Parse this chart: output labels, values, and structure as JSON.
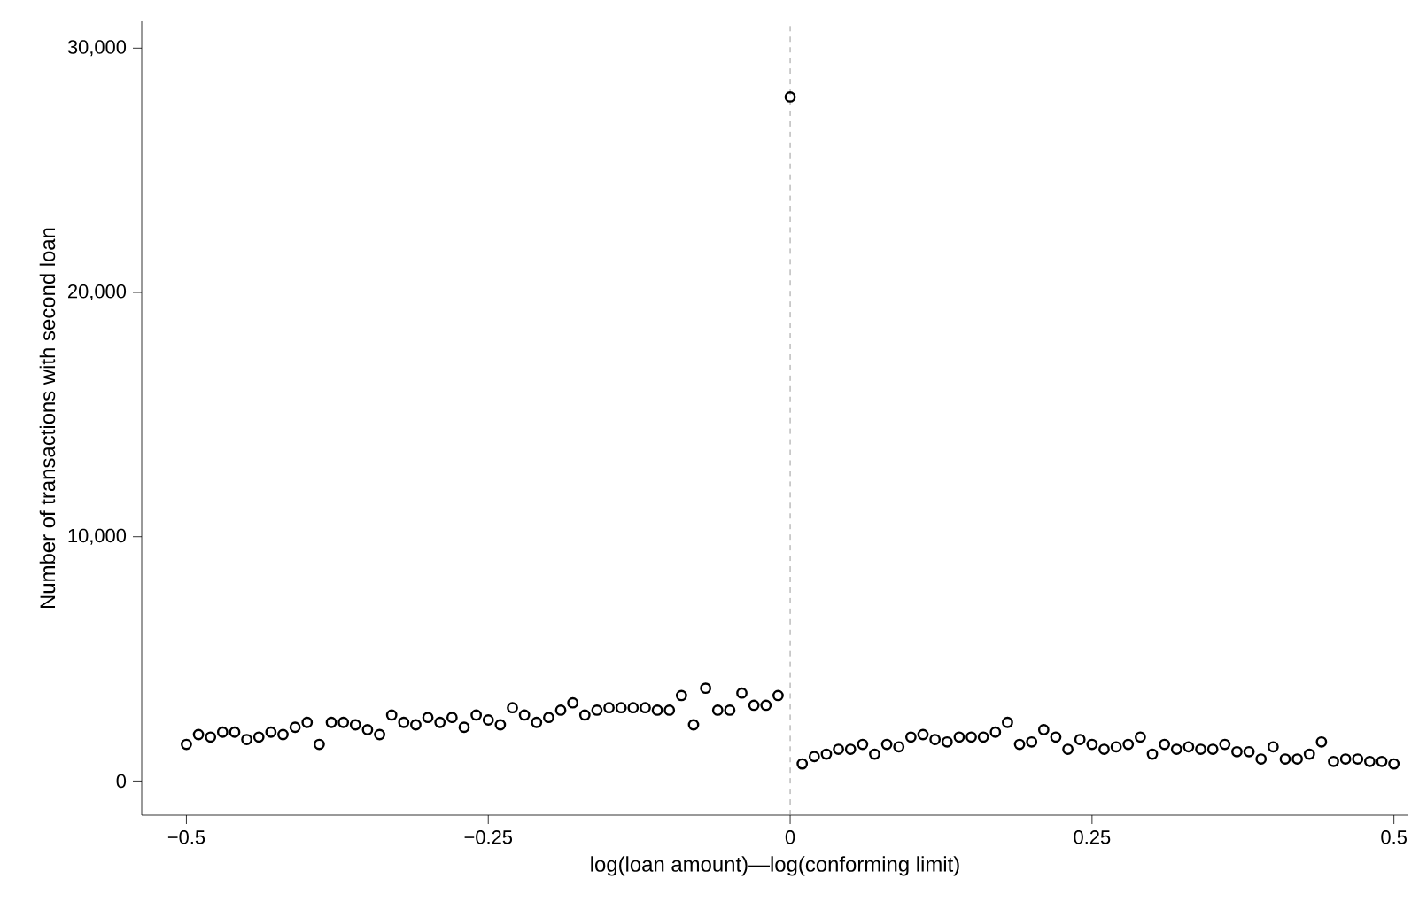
{
  "chart_data": {
    "type": "scatter",
    "xlabel": "log(loan amount)—log(conforming limit)",
    "ylabel": "Number of transactions with second loan",
    "x": [
      -0.5,
      -0.49,
      -0.48,
      -0.47,
      -0.46,
      -0.45,
      -0.44,
      -0.43,
      -0.42,
      -0.41,
      -0.4,
      -0.39,
      -0.38,
      -0.37,
      -0.36,
      -0.35,
      -0.34,
      -0.33,
      -0.32,
      -0.31,
      -0.3,
      -0.29,
      -0.28,
      -0.27,
      -0.26,
      -0.25,
      -0.24,
      -0.23,
      -0.22,
      -0.21,
      -0.2,
      -0.19,
      -0.18,
      -0.17,
      -0.16,
      -0.15,
      -0.14,
      -0.13,
      -0.12,
      -0.11,
      -0.1,
      -0.09,
      -0.08,
      -0.07,
      -0.06,
      -0.05,
      -0.04,
      -0.03,
      -0.02,
      -0.01,
      0,
      0.01,
      0.02,
      0.03,
      0.04,
      0.05,
      0.06,
      0.07,
      0.08,
      0.09,
      0.1,
      0.11,
      0.12,
      0.13,
      0.14,
      0.15,
      0.16,
      0.17,
      0.18,
      0.19,
      0.2,
      0.21,
      0.22,
      0.23,
      0.24,
      0.25,
      0.26,
      0.27,
      0.28,
      0.29,
      0.3,
      0.31,
      0.32,
      0.33,
      0.34,
      0.35,
      0.36,
      0.37,
      0.38,
      0.39,
      0.4,
      0.41,
      0.42,
      0.43,
      0.44,
      0.45,
      0.46,
      0.47,
      0.48,
      0.49,
      0.5
    ],
    "series": [
      {
        "color": "#000000",
        "values": [
          1500,
          1900,
          1800,
          2000,
          2000,
          1700,
          1800,
          2000,
          1900,
          2200,
          2400,
          1500,
          2400,
          2400,
          2300,
          2100,
          1900,
          2700,
          2400,
          2300,
          2600,
          2400,
          2600,
          2200,
          2700,
          2500,
          2300,
          3000,
          2700,
          2400,
          2600,
          2900,
          3200,
          2700,
          2900,
          3000,
          3000,
          3000,
          3000,
          2900,
          2900,
          3500,
          2300,
          3800,
          2900,
          2900,
          3600,
          3100,
          3100,
          3500,
          28000,
          700,
          1000,
          1100,
          1300,
          1300,
          1500,
          1100,
          1500,
          1400,
          1800,
          1900,
          1700,
          1600,
          1800,
          1800,
          1800,
          2000,
          2400,
          1500,
          1600,
          2100,
          1800,
          1300,
          1700,
          1500,
          1300,
          1400,
          1500,
          1800,
          1100,
          1500,
          1300,
          1400,
          1300,
          1300,
          1500,
          1200,
          1200,
          900,
          1400,
          900,
          900,
          1100,
          1600,
          800,
          900,
          900,
          800,
          800,
          700
        ]
      }
    ],
    "xlim": [
      -0.537,
      0.512
    ],
    "ylim": [
      -1400,
      31100
    ],
    "xticks": [
      {
        "value": -0.5,
        "label": "−0.5"
      },
      {
        "value": -0.25,
        "label": "−0.25"
      },
      0,
      0.25,
      0.5
    ],
    "yticks": [
      0,
      {
        "value": 10000,
        "label": "10,000"
      },
      {
        "value": 20000,
        "label": "20,000"
      },
      {
        "value": 30000,
        "label": "30,000"
      }
    ],
    "ref_lines": [
      {
        "axis": "x",
        "value": 0,
        "color": "#808080",
        "line_style": "dashed"
      }
    ],
    "marker": "circle"
  }
}
